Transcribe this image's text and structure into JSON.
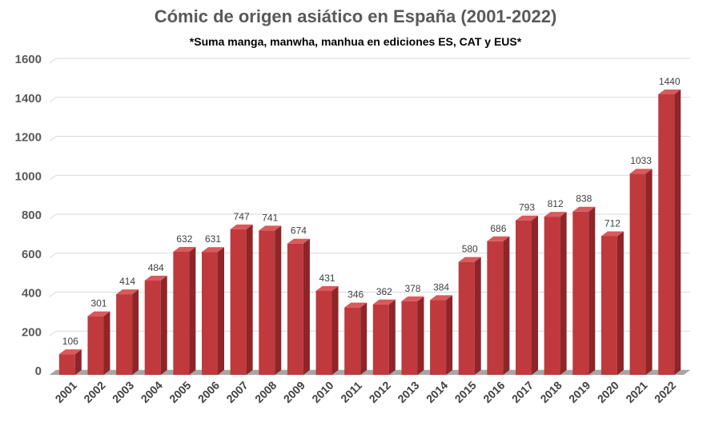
{
  "chart_data": {
    "type": "bar",
    "title": "Cómic de origen asiático en España (2001-2022)",
    "subtitle": "*Suma manga, manwha, manhua en ediciones ES, CAT y EUS*",
    "categories": [
      "2001",
      "2002",
      "2003",
      "2004",
      "2005",
      "2006",
      "2007",
      "2008",
      "2009",
      "2010",
      "2011",
      "2012",
      "2013",
      "2014",
      "2015",
      "2016",
      "2017",
      "2018",
      "2019",
      "2020",
      "2021",
      "2022"
    ],
    "values": [
      106,
      301,
      414,
      484,
      632,
      631,
      747,
      741,
      674,
      431,
      346,
      362,
      378,
      384,
      580,
      686,
      793,
      812,
      838,
      712,
      1033,
      1440
    ],
    "ylim": [
      0,
      1600
    ],
    "yticks": [
      0,
      200,
      400,
      600,
      800,
      1000,
      1200,
      1400,
      1600
    ],
    "grid": true,
    "data_labels": true,
    "bar_color": "#C0393D",
    "bar_side_color": "#8E2528",
    "bar_top_color": "#D9595C"
  }
}
